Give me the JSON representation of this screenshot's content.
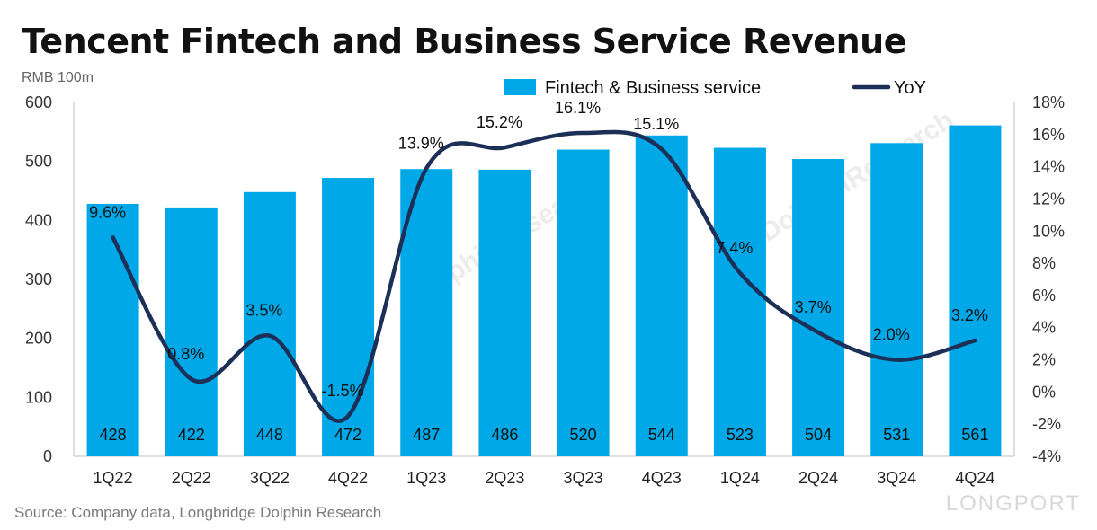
{
  "title": "Tencent Fintech and Business Service Revenue",
  "unit_label": "RMB 100m",
  "source": "Source: Company data, Longbridge Dolphin Research",
  "watermark": "LONGPORT",
  "watermark_text": "DolphinResearch",
  "chart_data": {
    "type": "bar",
    "categories": [
      "1Q22",
      "2Q22",
      "3Q22",
      "4Q22",
      "1Q23",
      "2Q23",
      "3Q23",
      "4Q23",
      "1Q24",
      "2Q24",
      "3Q24",
      "4Q24"
    ],
    "series": [
      {
        "name": "Fintech & Business service",
        "type": "bar",
        "axis": "left",
        "color": "#00a8e8",
        "values": [
          428,
          422,
          448,
          472,
          487,
          486,
          520,
          544,
          523,
          504,
          531,
          561
        ],
        "labels": [
          "428",
          "422",
          "448",
          "472",
          "487",
          "486",
          "520",
          "544",
          "523",
          "504",
          "531",
          "561"
        ]
      },
      {
        "name": "YoY",
        "type": "line",
        "axis": "right",
        "color": "#1b2f57",
        "values": [
          9.6,
          0.8,
          3.5,
          -1.5,
          13.9,
          15.2,
          16.1,
          15.1,
          7.4,
          3.7,
          2.0,
          3.2
        ],
        "labels": [
          "9.6%",
          "0.8%",
          "3.5%",
          "-1.5%",
          "13.9%",
          "15.2%",
          "16.1%",
          "15.1%",
          "7.4%",
          "3.7%",
          "2.0%",
          "3.2%"
        ]
      }
    ],
    "y_left": {
      "min": 0,
      "max": 600,
      "ticks": [
        "0",
        "100",
        "200",
        "300",
        "400",
        "500",
        "600"
      ]
    },
    "y_right": {
      "min": -4,
      "max": 18,
      "ticks": [
        "-4%",
        "-2%",
        "0%",
        "2%",
        "4%",
        "6%",
        "8%",
        "10%",
        "12%",
        "14%",
        "16%",
        "18%"
      ]
    },
    "legend_position": "top",
    "grid": false
  }
}
